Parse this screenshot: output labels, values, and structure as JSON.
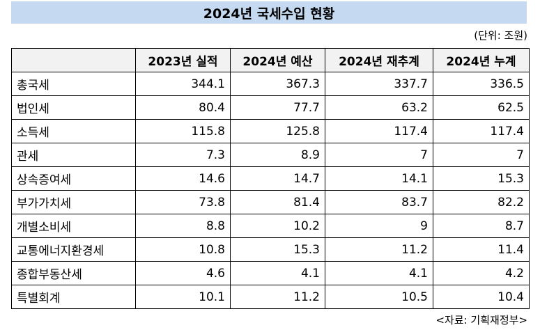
{
  "title": "2024년 국세수입 현황",
  "unit": "(단위: 조원)",
  "source": "<자료: 기획재정부>",
  "table": {
    "headers": [
      "",
      "2023년 실적",
      "2024년 예산",
      "2024년 재추계",
      "2024년 누계"
    ],
    "rows": [
      {
        "label": "총국세",
        "values": [
          "344.1",
          "367.3",
          "337.7",
          "336.5"
        ]
      },
      {
        "label": "법인세",
        "values": [
          "80.4",
          "77.7",
          "63.2",
          "62.5"
        ]
      },
      {
        "label": "소득세",
        "values": [
          "115.8",
          "125.8",
          "117.4",
          "117.4"
        ]
      },
      {
        "label": "관세",
        "values": [
          "7.3",
          "8.9",
          "7",
          "7"
        ]
      },
      {
        "label": "상속증여세",
        "values": [
          "14.6",
          "14.7",
          "14.1",
          "15.3"
        ]
      },
      {
        "label": "부가가치세",
        "values": [
          "73.8",
          "81.4",
          "83.7",
          "82.2"
        ]
      },
      {
        "label": "개별소비세",
        "values": [
          "8.8",
          "10.2",
          "9",
          "8.7"
        ]
      },
      {
        "label": "교통에너지환경세",
        "values": [
          "10.8",
          "15.3",
          "11.2",
          "11.4"
        ]
      },
      {
        "label": "종합부동산세",
        "values": [
          "4.6",
          "4.1",
          "4.1",
          "4.2"
        ]
      },
      {
        "label": "특별회계",
        "values": [
          "10.1",
          "11.2",
          "10.5",
          "10.4"
        ]
      }
    ]
  }
}
